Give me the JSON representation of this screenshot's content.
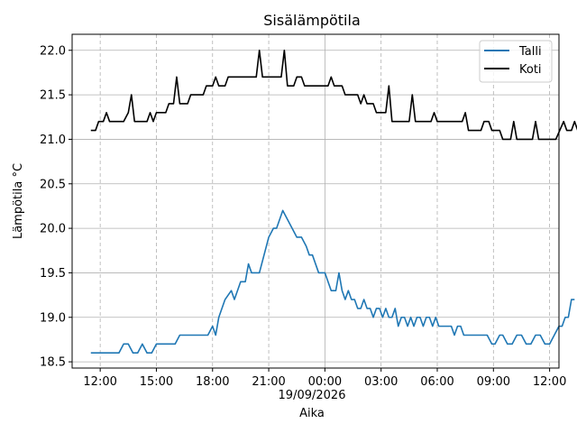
{
  "chart_data": {
    "type": "line",
    "title": "Sisälämpötila",
    "xlabel": "Aika",
    "ylabel": "Lämpötila °C",
    "date_label": "19/09/2026",
    "xlim": [
      "2026-09-18T10:30",
      "2026-09-19T12:30"
    ],
    "ylim": [
      18.43,
      22.18
    ],
    "x_ticks": [
      "2026-09-18T12:00",
      "2026-09-18T15:00",
      "2026-09-18T18:00",
      "2026-09-18T21:00",
      "2026-09-19T00:00",
      "2026-09-19T03:00",
      "2026-09-19T06:00",
      "2026-09-19T09:00",
      "2026-09-19T12:00"
    ],
    "x_tick_labels": [
      "12:00",
      "15:00",
      "18:00",
      "21:00",
      "00:00",
      "03:00",
      "06:00",
      "09:00",
      "12:00"
    ],
    "y_ticks": [
      18.5,
      19.0,
      19.5,
      20.0,
      20.5,
      21.0,
      21.5,
      22.0
    ],
    "y_tick_labels": [
      "18.5",
      "19.0",
      "19.5",
      "20.0",
      "20.5",
      "21.0",
      "21.5",
      "22.0"
    ],
    "grid": true,
    "legend_position": "top-right",
    "series": [
      {
        "name": "Talli",
        "color": "#1f77b4",
        "points": [
          [
            "2026-09-18T11:30",
            18.6
          ],
          [
            "2026-09-18T13:00",
            18.6
          ],
          [
            "2026-09-18T13:15",
            18.7
          ],
          [
            "2026-09-18T13:30",
            18.7
          ],
          [
            "2026-09-18T13:45",
            18.6
          ],
          [
            "2026-09-18T14:00",
            18.6
          ],
          [
            "2026-09-18T14:15",
            18.7
          ],
          [
            "2026-09-18T14:30",
            18.6
          ],
          [
            "2026-09-18T14:45",
            18.6
          ],
          [
            "2026-09-18T15:00",
            18.7
          ],
          [
            "2026-09-18T16:00",
            18.7
          ],
          [
            "2026-09-18T16:15",
            18.8
          ],
          [
            "2026-09-18T17:45",
            18.8
          ],
          [
            "2026-09-18T18:00",
            18.9
          ],
          [
            "2026-09-18T18:10",
            18.8
          ],
          [
            "2026-09-18T18:20",
            19.0
          ],
          [
            "2026-09-18T18:40",
            19.2
          ],
          [
            "2026-09-18T19:00",
            19.3
          ],
          [
            "2026-09-18T19:10",
            19.2
          ],
          [
            "2026-09-18T19:30",
            19.4
          ],
          [
            "2026-09-18T19:45",
            19.4
          ],
          [
            "2026-09-18T19:55",
            19.6
          ],
          [
            "2026-09-18T20:05",
            19.5
          ],
          [
            "2026-09-18T20:30",
            19.5
          ],
          [
            "2026-09-18T21:00",
            19.9
          ],
          [
            "2026-09-18T21:15",
            20.0
          ],
          [
            "2026-09-18T21:25",
            20.0
          ],
          [
            "2026-09-18T21:45",
            20.2
          ],
          [
            "2026-09-18T22:00",
            20.1
          ],
          [
            "2026-09-18T22:15",
            20.0
          ],
          [
            "2026-09-18T22:30",
            19.9
          ],
          [
            "2026-09-18T22:45",
            19.9
          ],
          [
            "2026-09-18T23:00",
            19.8
          ],
          [
            "2026-09-18T23:10",
            19.7
          ],
          [
            "2026-09-18T23:20",
            19.7
          ],
          [
            "2026-09-18T23:30",
            19.6
          ],
          [
            "2026-09-18T23:40",
            19.5
          ],
          [
            "2026-09-18T24:00",
            19.5
          ],
          [
            "2026-09-19T00:10",
            19.4
          ],
          [
            "2026-09-19T00:20",
            19.3
          ],
          [
            "2026-09-19T00:35",
            19.3
          ],
          [
            "2026-09-19T00:45",
            19.5
          ],
          [
            "2026-09-19T00:55",
            19.3
          ],
          [
            "2026-09-19T01:05",
            19.2
          ],
          [
            "2026-09-19T01:15",
            19.3
          ],
          [
            "2026-09-19T01:25",
            19.2
          ],
          [
            "2026-09-19T01:35",
            19.2
          ],
          [
            "2026-09-19T01:45",
            19.1
          ],
          [
            "2026-09-19T01:55",
            19.1
          ],
          [
            "2026-09-19T02:05",
            19.2
          ],
          [
            "2026-09-19T02:15",
            19.1
          ],
          [
            "2026-09-19T02:25",
            19.1
          ],
          [
            "2026-09-19T02:35",
            19.0
          ],
          [
            "2026-09-19T02:45",
            19.1
          ],
          [
            "2026-09-19T02:55",
            19.1
          ],
          [
            "2026-09-19T03:05",
            19.0
          ],
          [
            "2026-09-19T03:15",
            19.1
          ],
          [
            "2026-09-19T03:25",
            19.0
          ],
          [
            "2026-09-19T03:35",
            19.0
          ],
          [
            "2026-09-19T03:45",
            19.1
          ],
          [
            "2026-09-19T03:55",
            18.9
          ],
          [
            "2026-09-19T04:05",
            19.0
          ],
          [
            "2026-09-19T04:15",
            19.0
          ],
          [
            "2026-09-19T04:25",
            18.9
          ],
          [
            "2026-09-19T04:35",
            19.0
          ],
          [
            "2026-09-19T04:45",
            18.9
          ],
          [
            "2026-09-19T04:55",
            19.0
          ],
          [
            "2026-09-19T05:05",
            19.0
          ],
          [
            "2026-09-19T05:15",
            18.9
          ],
          [
            "2026-09-19T05:25",
            19.0
          ],
          [
            "2026-09-19T05:35",
            19.0
          ],
          [
            "2026-09-19T05:45",
            18.9
          ],
          [
            "2026-09-19T05:55",
            19.0
          ],
          [
            "2026-09-19T06:05",
            18.9
          ],
          [
            "2026-09-19T06:45",
            18.9
          ],
          [
            "2026-09-19T06:55",
            18.8
          ],
          [
            "2026-09-19T07:05",
            18.9
          ],
          [
            "2026-09-19T07:15",
            18.9
          ],
          [
            "2026-09-19T07:25",
            18.8
          ],
          [
            "2026-09-19T08:40",
            18.8
          ],
          [
            "2026-09-19T08:55",
            18.7
          ],
          [
            "2026-09-19T09:05",
            18.7
          ],
          [
            "2026-09-19T09:20",
            18.8
          ],
          [
            "2026-09-19T09:30",
            18.8
          ],
          [
            "2026-09-19T09:45",
            18.7
          ],
          [
            "2026-09-19T10:00",
            18.7
          ],
          [
            "2026-09-19T10:15",
            18.8
          ],
          [
            "2026-09-19T10:30",
            18.8
          ],
          [
            "2026-09-19T10:45",
            18.7
          ],
          [
            "2026-09-19T11:00",
            18.7
          ],
          [
            "2026-09-19T11:15",
            18.8
          ],
          [
            "2026-09-19T11:30",
            18.8
          ],
          [
            "2026-09-19T11:45",
            18.7
          ],
          [
            "2026-09-19T12:00",
            18.7
          ],
          [
            "2026-09-19T12:15",
            18.8
          ],
          [
            "2026-09-19T12:30",
            18.9
          ],
          [
            "2026-09-19T12:40",
            18.9
          ],
          [
            "2026-09-19T12:50",
            19.0
          ],
          [
            "2026-09-19T13:00",
            19.0
          ],
          [
            "2026-09-19T13:10",
            19.2
          ],
          [
            "2026-09-19T13:20",
            19.2
          ]
        ]
      },
      {
        "name": "Koti",
        "color": "#000000",
        "points": [
          [
            "2026-09-18T11:30",
            21.1
          ],
          [
            "2026-09-18T11:45",
            21.1
          ],
          [
            "2026-09-18T11:55",
            21.2
          ],
          [
            "2026-09-18T12:10",
            21.2
          ],
          [
            "2026-09-18T12:20",
            21.3
          ],
          [
            "2026-09-18T12:30",
            21.2
          ],
          [
            "2026-09-18T13:15",
            21.2
          ],
          [
            "2026-09-18T13:30",
            21.3
          ],
          [
            "2026-09-18T13:40",
            21.5
          ],
          [
            "2026-09-18T13:50",
            21.2
          ],
          [
            "2026-09-18T14:30",
            21.2
          ],
          [
            "2026-09-18T14:40",
            21.3
          ],
          [
            "2026-09-18T14:50",
            21.2
          ],
          [
            "2026-09-18T15:00",
            21.3
          ],
          [
            "2026-09-18T15:30",
            21.3
          ],
          [
            "2026-09-18T15:40",
            21.4
          ],
          [
            "2026-09-18T15:55",
            21.4
          ],
          [
            "2026-09-18T16:05",
            21.7
          ],
          [
            "2026-09-18T16:15",
            21.4
          ],
          [
            "2026-09-18T16:40",
            21.4
          ],
          [
            "2026-09-18T16:50",
            21.5
          ],
          [
            "2026-09-18T17:30",
            21.5
          ],
          [
            "2026-09-18T17:40",
            21.6
          ],
          [
            "2026-09-18T18:00",
            21.6
          ],
          [
            "2026-09-18T18:10",
            21.7
          ],
          [
            "2026-09-18T18:20",
            21.6
          ],
          [
            "2026-09-18T18:40",
            21.6
          ],
          [
            "2026-09-18T18:50",
            21.7
          ],
          [
            "2026-09-18T20:20",
            21.7
          ],
          [
            "2026-09-18T20:30",
            22.0
          ],
          [
            "2026-09-18T20:40",
            21.7
          ],
          [
            "2026-09-18T21:40",
            21.7
          ],
          [
            "2026-09-18T21:50",
            22.0
          ],
          [
            "2026-09-18T22:00",
            21.6
          ],
          [
            "2026-09-18T22:20",
            21.6
          ],
          [
            "2026-09-18T22:30",
            21.7
          ],
          [
            "2026-09-18T22:45",
            21.7
          ],
          [
            "2026-09-18T22:55",
            21.6
          ],
          [
            "2026-09-19T00:10",
            21.6
          ],
          [
            "2026-09-19T00:20",
            21.7
          ],
          [
            "2026-09-19T00:30",
            21.6
          ],
          [
            "2026-09-19T00:55",
            21.6
          ],
          [
            "2026-09-19T01:05",
            21.5
          ],
          [
            "2026-09-19T01:45",
            21.5
          ],
          [
            "2026-09-19T01:55",
            21.4
          ],
          [
            "2026-09-19T02:05",
            21.5
          ],
          [
            "2026-09-19T02:15",
            21.4
          ],
          [
            "2026-09-19T02:35",
            21.4
          ],
          [
            "2026-09-19T02:45",
            21.3
          ],
          [
            "2026-09-19T03:15",
            21.3
          ],
          [
            "2026-09-19T03:25",
            21.6
          ],
          [
            "2026-09-19T03:35",
            21.2
          ],
          [
            "2026-09-19T04:30",
            21.2
          ],
          [
            "2026-09-19T04:40",
            21.5
          ],
          [
            "2026-09-19T04:50",
            21.2
          ],
          [
            "2026-09-19T05:40",
            21.2
          ],
          [
            "2026-09-19T05:50",
            21.3
          ],
          [
            "2026-09-19T06:00",
            21.2
          ],
          [
            "2026-09-19T07:20",
            21.2
          ],
          [
            "2026-09-19T07:30",
            21.3
          ],
          [
            "2026-09-19T07:40",
            21.1
          ],
          [
            "2026-09-19T08:20",
            21.1
          ],
          [
            "2026-09-19T08:30",
            21.2
          ],
          [
            "2026-09-19T08:45",
            21.2
          ],
          [
            "2026-09-19T08:55",
            21.1
          ],
          [
            "2026-09-19T09:20",
            21.1
          ],
          [
            "2026-09-19T09:30",
            21.0
          ],
          [
            "2026-09-19T09:55",
            21.0
          ],
          [
            "2026-09-19T10:05",
            21.2
          ],
          [
            "2026-09-19T10:15",
            21.0
          ],
          [
            "2026-09-19T11:05",
            21.0
          ],
          [
            "2026-09-19T11:15",
            21.2
          ],
          [
            "2026-09-19T11:25",
            21.0
          ],
          [
            "2026-09-19T12:20",
            21.0
          ],
          [
            "2026-09-19T12:45",
            21.2
          ],
          [
            "2026-09-19T12:55",
            21.1
          ],
          [
            "2026-09-19T13:10",
            21.1
          ],
          [
            "2026-09-19T13:20",
            21.2
          ],
          [
            "2026-09-19T13:30",
            21.1
          ]
        ]
      }
    ]
  }
}
